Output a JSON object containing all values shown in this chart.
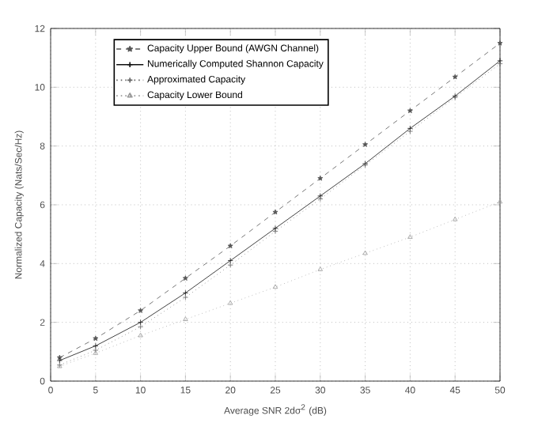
{
  "chart_data": {
    "type": "line",
    "xlabel": "Average SNR 2dσ$^{2}$ (dB)",
    "ylabel": "Normalized Capacity (Nats/Sec/Hz)",
    "x": [
      1,
      5,
      10,
      15,
      20,
      25,
      30,
      35,
      40,
      45,
      50
    ],
    "xlim": [
      0,
      50
    ],
    "xticks": [
      0,
      5,
      10,
      15,
      20,
      25,
      30,
      35,
      40,
      45,
      50
    ],
    "ylim": [
      0,
      12
    ],
    "yticks": [
      0,
      2,
      4,
      6,
      8,
      10,
      12
    ],
    "grid": true,
    "legend": "top left",
    "series": [
      {
        "name": "Capacity Upper Bound (AWGN Channel)",
        "color": "#555555",
        "marker": "star",
        "line_style": "dashed",
        "values": [
          0.8,
          1.45,
          2.4,
          3.5,
          4.6,
          5.75,
          6.9,
          8.05,
          9.2,
          10.35,
          11.5
        ]
      },
      {
        "name": "Numerically Computed Shannon Capacity",
        "color": "#111111",
        "marker": "cross",
        "line_style": "solid",
        "values": [
          0.7,
          1.2,
          2.0,
          3.0,
          4.1,
          5.2,
          6.3,
          7.4,
          8.6,
          9.7,
          10.9
        ]
      },
      {
        "name": "Approximated Capacity",
        "color": "#666666",
        "marker": "cross",
        "line_style": "dotted",
        "values": [
          0.55,
          1.05,
          1.85,
          2.85,
          3.95,
          5.1,
          6.2,
          7.35,
          8.5,
          9.65,
          10.8
        ]
      },
      {
        "name": "Capacity Lower Bound",
        "color": "#999999",
        "marker": "triangle",
        "line_style": "dotted",
        "values": [
          0.5,
          0.95,
          1.55,
          2.1,
          2.65,
          3.2,
          3.8,
          4.35,
          4.9,
          5.5,
          6.1
        ]
      }
    ]
  }
}
